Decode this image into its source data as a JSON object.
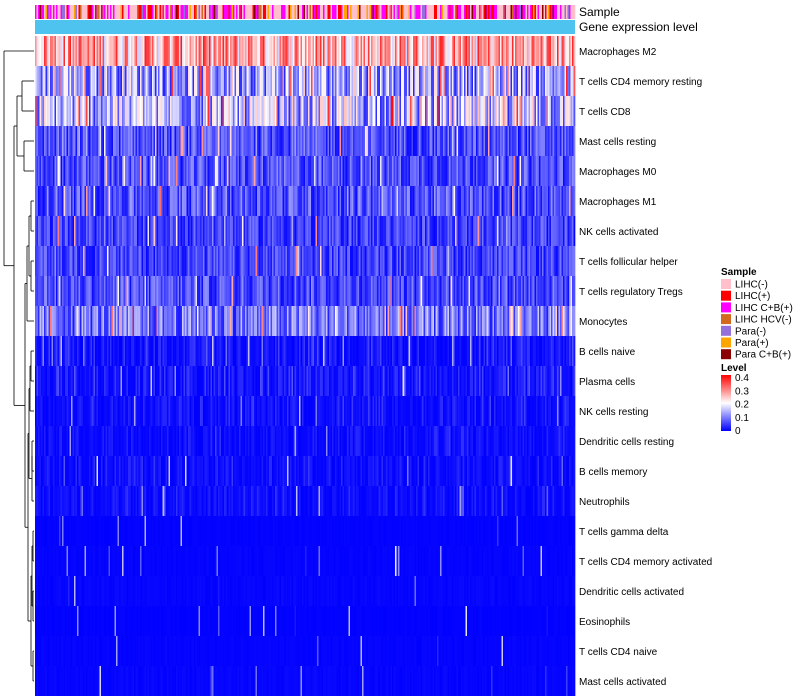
{
  "chart_data": {
    "type": "heatmap",
    "title": "",
    "annotation_tracks": [
      "Sample",
      "Gene expression level"
    ],
    "annotation_colors": {
      "gene_expression_level": "#4fc3f0"
    },
    "rows": [
      {
        "label": "Macrophages M2",
        "mean": 0.27
      },
      {
        "label": "T cells CD4 memory resting",
        "mean": 0.13
      },
      {
        "label": "T cells CD8",
        "mean": 0.14
      },
      {
        "label": "Mast cells resting",
        "mean": 0.06
      },
      {
        "label": "Macrophages M0",
        "mean": 0.06
      },
      {
        "label": "Macrophages M1",
        "mean": 0.065
      },
      {
        "label": "NK cells activated",
        "mean": 0.05
      },
      {
        "label": "T cells follicular helper",
        "mean": 0.05
      },
      {
        "label": "T cells regulatory  Tregs",
        "mean": 0.06
      },
      {
        "label": "Monocytes",
        "mean": 0.09
      },
      {
        "label": "B cells naive",
        "mean": 0.03
      },
      {
        "label": "Plasma cells",
        "mean": 0.035
      },
      {
        "label": "NK cells resting",
        "mean": 0.025
      },
      {
        "label": "Dendritic cells resting",
        "mean": 0.02
      },
      {
        "label": "B cells memory",
        "mean": 0.02
      },
      {
        "label": "Neutrophils",
        "mean": 0.02
      },
      {
        "label": "T cells gamma delta",
        "mean": 0.004
      },
      {
        "label": "T cells CD4 memory activated",
        "mean": 0.006
      },
      {
        "label": "Dendritic cells activated",
        "mean": 0.008
      },
      {
        "label": "Eosinophils",
        "mean": 0.003
      },
      {
        "label": "T cells CD4 naive",
        "mean": 0.006
      },
      {
        "label": "Mast cells activated",
        "mean": 0.008
      }
    ],
    "sample_legend": {
      "title": "Sample",
      "entries": [
        {
          "label": "LIHC(-)",
          "color": "#ffc0cb"
        },
        {
          "label": "LIHC(+)",
          "color": "#ff0000"
        },
        {
          "label": "LIHC C+B(+)",
          "color": "#ff00ff"
        },
        {
          "label": "LIHC HCV(-)",
          "color": "#d2691e"
        },
        {
          "label": "Para(-)",
          "color": "#9370db"
        },
        {
          "label": "Para(+)",
          "color": "#ffa500"
        },
        {
          "label": "Para C+B(+)",
          "color": "#8b0000"
        }
      ]
    },
    "level_legend": {
      "title": "Level",
      "ticks": [
        "0.4",
        "0.3",
        "0.2",
        "0.1",
        "0"
      ],
      "range": [
        0,
        0.4
      ],
      "colors": [
        "#0000ff",
        "#ffffff",
        "#ff0000"
      ]
    }
  }
}
